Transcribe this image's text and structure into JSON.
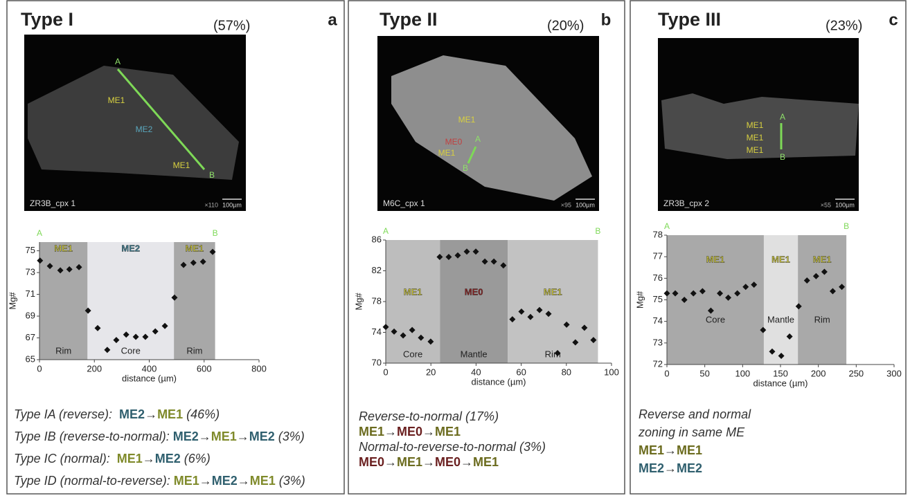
{
  "panels": [
    {
      "title": "Type I",
      "share": "(57%)",
      "letter": "a",
      "image": {
        "sample": "ZR3B_cpx 1",
        "magnification": "×110",
        "scale": "100µm",
        "labels": [
          "A",
          "B",
          "ME1",
          "ME2",
          "ME1"
        ]
      },
      "notes": [
        [
          {
            "text": "Type IA (reverse):  "
          },
          {
            "text": "ME2",
            "color": "#2f5f6e"
          },
          {
            "text": "→",
            "color": "#333333"
          },
          {
            "text": "ME1",
            "color": "#7f8a2a"
          },
          {
            "text": " (46%)"
          }
        ],
        [
          {
            "text": "Type IB (reverse-to-normal): "
          },
          {
            "text": "ME2",
            "color": "#2f5f6e"
          },
          {
            "text": "→",
            "color": "#333333"
          },
          {
            "text": "ME1",
            "color": "#7f8a2a"
          },
          {
            "text": "→",
            "color": "#333333"
          },
          {
            "text": "ME2",
            "color": "#2f5f6e"
          },
          {
            "text": " (3%)"
          }
        ],
        [
          {
            "text": "Type IC (normal):  "
          },
          {
            "text": "ME1",
            "color": "#7f8a2a"
          },
          {
            "text": "→",
            "color": "#333333"
          },
          {
            "text": "ME2",
            "color": "#2f5f6e"
          },
          {
            "text": " (6%)"
          }
        ],
        [
          {
            "text": "Type ID (normal-to-reverse): "
          },
          {
            "text": "ME1",
            "color": "#7f8a2a"
          },
          {
            "text": "→",
            "color": "#333333"
          },
          {
            "text": "ME2",
            "color": "#2f5f6e"
          },
          {
            "text": "→",
            "color": "#333333"
          },
          {
            "text": "ME1",
            "color": "#7f8a2a"
          },
          {
            "text": " (3%)"
          }
        ]
      ]
    },
    {
      "title": "Type II",
      "share": "(20%)",
      "letter": "b",
      "image": {
        "sample": "M6C_cpx 1",
        "magnification": "×95",
        "scale": "100µm",
        "labels": [
          "ME1",
          "ME0",
          "ME1",
          "A",
          "B"
        ]
      },
      "notes": [
        [
          {
            "text": "Reverse-to-normal (17%)"
          }
        ],
        [
          {
            "text": "ME1",
            "color": "#6b6b1e"
          },
          {
            "text": "→",
            "color": "#333333"
          },
          {
            "text": "ME0",
            "color": "#6a1f1f"
          },
          {
            "text": "→",
            "color": "#333333"
          },
          {
            "text": "ME1",
            "color": "#6b6b1e"
          }
        ],
        [
          {
            "text": "Normal-to-reverse-to-normal (3%)"
          }
        ],
        [
          {
            "text": "ME0",
            "color": "#6a1f1f"
          },
          {
            "text": "→",
            "color": "#333333"
          },
          {
            "text": "ME1",
            "color": "#6b6b1e"
          },
          {
            "text": "→",
            "color": "#333333"
          },
          {
            "text": "ME0",
            "color": "#6a1f1f"
          },
          {
            "text": "→",
            "color": "#333333"
          },
          {
            "text": "ME1",
            "color": "#6b6b1e"
          }
        ]
      ]
    },
    {
      "title": "Type III",
      "share": "(23%)",
      "letter": "c",
      "image": {
        "sample": "ZR3B_cpx 2",
        "magnification": "×55",
        "scale": "100µm",
        "labels": [
          "A",
          "ME1",
          "ME1",
          "ME1",
          "B"
        ]
      },
      "notes": [
        [
          {
            "text": "Reverse and normal"
          }
        ],
        [
          {
            "text": "zoning in same ME"
          }
        ],
        [
          {
            "text": "ME1",
            "color": "#6b6b1e"
          },
          {
            "text": "→",
            "color": "#333333"
          },
          {
            "text": "ME1",
            "color": "#6b6b1e"
          }
        ],
        [
          {
            "text": "ME2",
            "color": "#2f5f6e"
          },
          {
            "text": "→",
            "color": "#333333"
          },
          {
            "text": "ME2",
            "color": "#2f5f6e"
          }
        ]
      ]
    }
  ],
  "chart_data": [
    {
      "type": "scatter",
      "xlabel": "distance (µm)",
      "ylabel": "Mg#",
      "ends": [
        "A",
        "B"
      ],
      "color": "#111111",
      "x": [
        2,
        38,
        76,
        109,
        144,
        177,
        212,
        247,
        280,
        316,
        351,
        386,
        422,
        457,
        492,
        525,
        561,
        596,
        631
      ],
      "values": [
        74.1,
        73.6,
        73.2,
        73.3,
        73.5,
        69.5,
        67.9,
        65.9,
        66.8,
        67.3,
        67.1,
        67.1,
        67.6,
        68.1,
        70.7,
        73.7,
        73.9,
        74.0,
        74.9
      ],
      "xlim": [
        0,
        800
      ],
      "ylim": [
        65,
        75.8
      ],
      "xticks": [
        0,
        200,
        400,
        600,
        800
      ],
      "yticks": [
        65,
        67,
        69,
        71,
        73,
        75
      ],
      "regions": [
        {
          "start": 0,
          "end": 175,
          "fill": "#a8a8a8",
          "zone": "ME1",
          "zone_color": "#c8c23a",
          "part": "Rim"
        },
        {
          "start": 175,
          "end": 490,
          "fill": "#e6e6ea",
          "zone": "ME2",
          "zone_color": "#3f7f92",
          "part": "Core"
        },
        {
          "start": 490,
          "end": 640,
          "fill": "#a8a8a8",
          "zone": "ME1",
          "zone_color": "#c8c23a",
          "part": "Rim"
        }
      ]
    },
    {
      "type": "scatter",
      "xlabel": "distance (µm)",
      "ylabel": "Mg#",
      "ends": [
        "A",
        "B"
      ],
      "color": "#111111",
      "x": [
        0,
        3.7,
        7.7,
        11.7,
        15.6,
        19.9,
        23.9,
        27.9,
        31.9,
        35.9,
        39.9,
        43.9,
        47.9,
        52.1,
        56.1,
        60.1,
        64.1,
        68.1,
        72.1,
        76.1,
        80.1,
        84,
        88,
        92
      ],
      "values": [
        74.7,
        74.1,
        73.6,
        74.3,
        73.3,
        72.8,
        83.8,
        83.8,
        84.0,
        84.5,
        84.5,
        83.2,
        83.2,
        82.7,
        75.7,
        76.7,
        76.0,
        76.9,
        76.4,
        71.3,
        75.0,
        72.7,
        74.6,
        73.0
      ],
      "xlim": [
        0,
        100
      ],
      "ylim": [
        70,
        86
      ],
      "xticks": [
        0,
        20,
        40,
        60,
        80,
        100
      ],
      "yticks": [
        70,
        74,
        78,
        82,
        86
      ],
      "regions": [
        {
          "start": 0,
          "end": 24,
          "fill": "#bdbdbd",
          "zone": "ME1",
          "zone_color": "#c8c23a",
          "part": "Core"
        },
        {
          "start": 24,
          "end": 54,
          "fill": "#9a9a9a",
          "zone": "ME0",
          "zone_color": "#8a2020",
          "part": "Mantle"
        },
        {
          "start": 54,
          "end": 94,
          "fill": "#c2c2c2",
          "zone": "ME1",
          "zone_color": "#c8c23a",
          "part": "Rim"
        }
      ]
    },
    {
      "type": "scatter",
      "xlabel": "distance (µm)",
      "ylabel": "Mg#",
      "ends": [
        "A",
        "B"
      ],
      "color": "#111111",
      "x": [
        0,
        11,
        23,
        35,
        47,
        58,
        70,
        81,
        93,
        104,
        115,
        127,
        139,
        151,
        162,
        174,
        185,
        197,
        208,
        219,
        231
      ],
      "values": [
        75.3,
        75.3,
        75.0,
        75.3,
        75.4,
        74.5,
        75.3,
        75.1,
        75.3,
        75.6,
        75.7,
        73.6,
        72.6,
        72.4,
        73.3,
        74.7,
        75.9,
        76.1,
        76.3,
        75.4,
        75.6
      ],
      "xlim": [
        0,
        300
      ],
      "ylim": [
        72,
        78
      ],
      "xticks": [
        0,
        50,
        100,
        150,
        200,
        250,
        300
      ],
      "yticks": [
        72,
        73,
        74,
        75,
        76,
        77,
        78
      ],
      "regions": [
        {
          "start": 0,
          "end": 128,
          "fill": "#a9a9a9",
          "zone": "ME1",
          "zone_color": "#c8c23a",
          "part": "Core"
        },
        {
          "start": 128,
          "end": 173,
          "fill": "#e0e0e0",
          "zone": "ME1",
          "zone_color": "#c8c23a",
          "part": "Mantle"
        },
        {
          "start": 173,
          "end": 237,
          "fill": "#a9a9a9",
          "zone": "ME1",
          "zone_color": "#c8c23a",
          "part": "Rim"
        }
      ]
    }
  ]
}
